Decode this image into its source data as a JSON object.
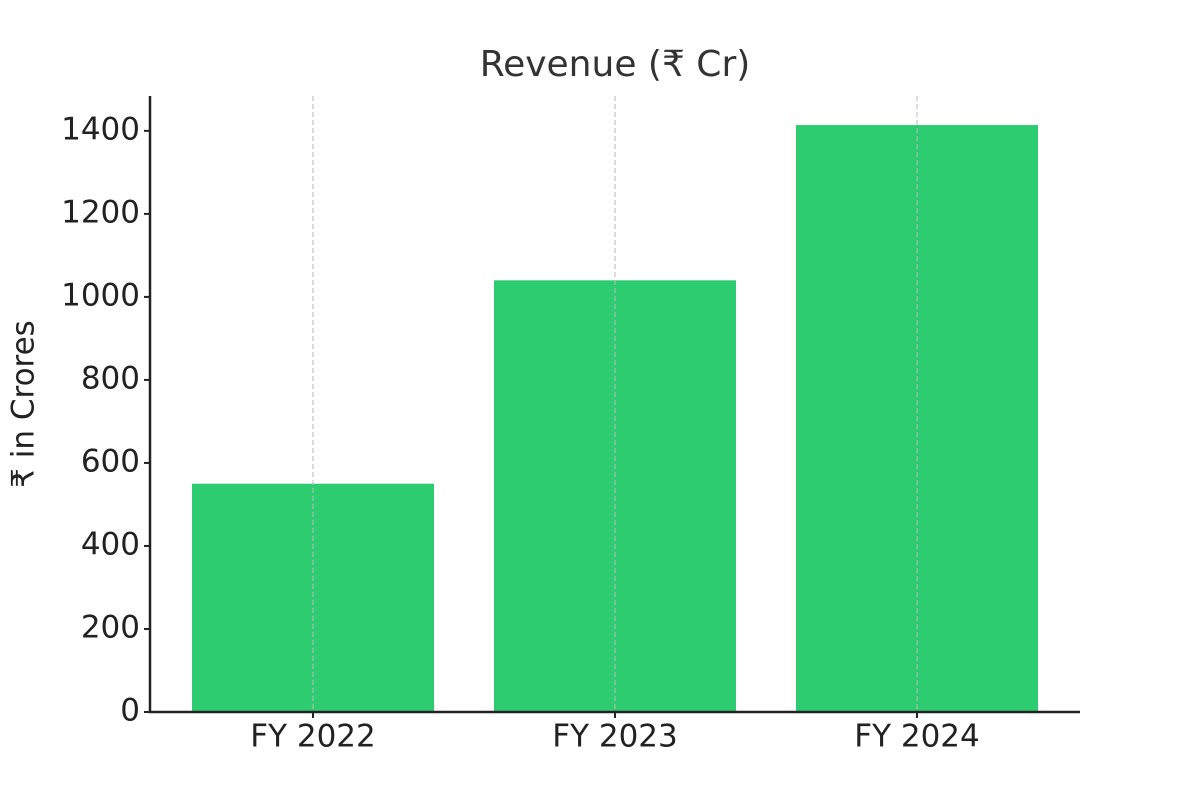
{
  "chart_data": {
    "type": "bar",
    "title": "Revenue (₹ Cr)",
    "y_label": "₹ in Crores",
    "categories": [
      "FY 2022",
      "FY 2023",
      "FY 2024"
    ],
    "values": [
      550,
      1040,
      1414
    ],
    "color": "#2ecc71",
    "ylim": [
      0,
      1484
    ],
    "yticks": [
      0,
      200,
      400,
      600,
      800,
      1000,
      1200,
      1400
    ],
    "grid": "x"
  }
}
